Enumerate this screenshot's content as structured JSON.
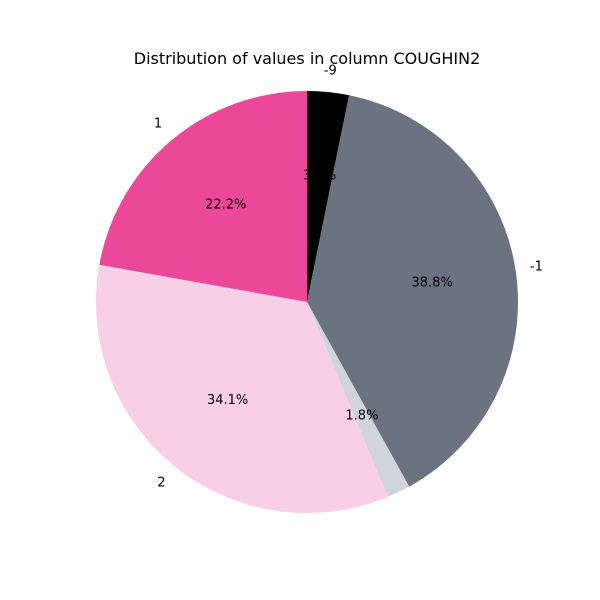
{
  "chart_data": {
    "type": "pie",
    "title": "Distribution of values in column COUGHIN2",
    "start_angle_deg": 90,
    "direction": "clockwise",
    "slices": [
      {
        "label": "-9",
        "value": 3.2,
        "pct_label": "3.2%",
        "color": "#000000"
      },
      {
        "label": "-1",
        "value": 38.8,
        "pct_label": "38.8%",
        "color": "#6b7280"
      },
      {
        "label": "",
        "value": 1.8,
        "pct_label": "1.8%",
        "color": "#d1d5db"
      },
      {
        "label": "2",
        "value": 34.1,
        "pct_label": "34.1%",
        "color": "#f9cee7"
      },
      {
        "label": "1",
        "value": 22.2,
        "pct_label": "22.2%",
        "color": "#ec4899"
      }
    ]
  }
}
